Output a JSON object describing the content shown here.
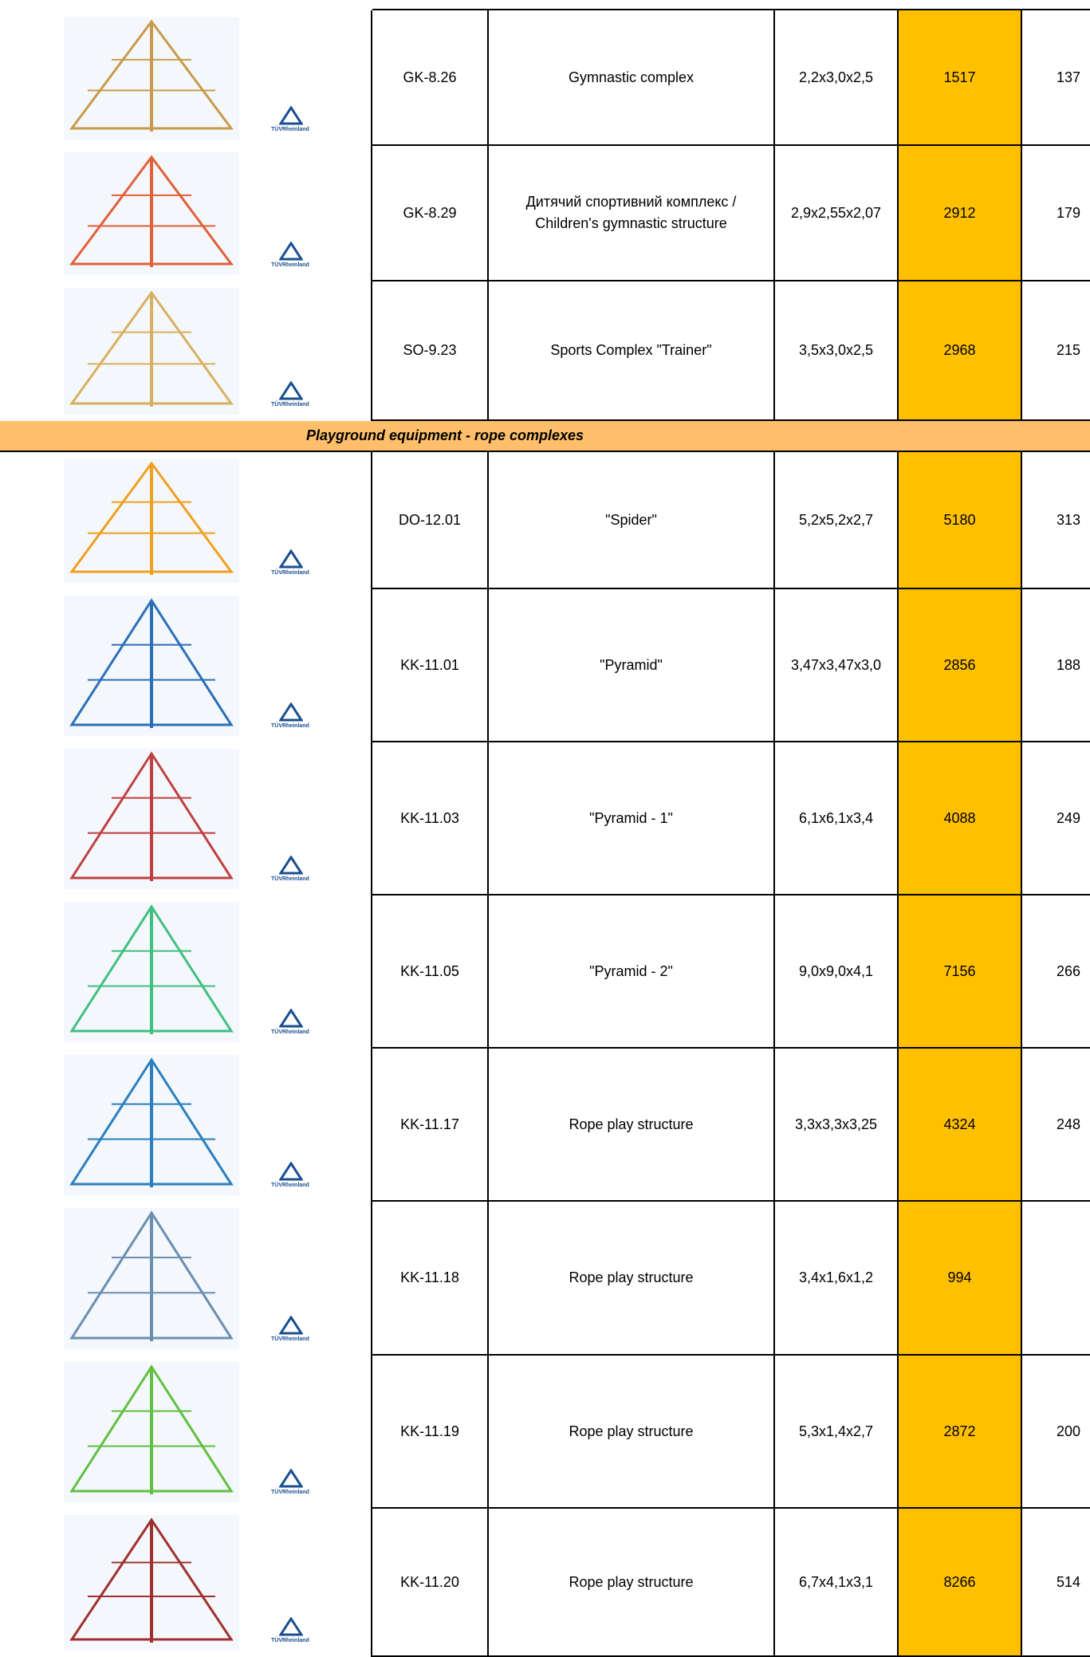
{
  "logo_text": "TÜVRheinland",
  "groups": [
    {
      "rows": [
        {
          "code": "GK-8.26",
          "name": "Gymnastic complex",
          "size": "2,2x3,0x2,5",
          "price": 1517,
          "qty": 137
        },
        {
          "code": "GK-8.29",
          "name": "Дитячий спортивний комплекс / Children's gymnastic structure",
          "size": "2,9x2,55x2,07",
          "price": 2912,
          "qty": 179
        },
        {
          "code": "SO-9.23",
          "name": "Sports Complex \"Trainer\"",
          "size": "3,5x3,0x2,5",
          "price": 2968,
          "qty": 215
        }
      ]
    },
    {
      "title": "Playground equipment  - rope complexes",
      "rows": [
        {
          "code": "DO-12.01",
          "name": "\"Spider\"",
          "size": "5,2x5,2x2,7",
          "price": 5180,
          "qty": 313
        },
        {
          "code": "KK-11.01",
          "name": "\"Pyramid\"",
          "size": "3,47x3,47x3,0",
          "price": 2856,
          "qty": 188
        },
        {
          "code": "KK-11.03",
          "name": "\"Pyramid - 1\"",
          "size": "6,1x6,1x3,4",
          "price": 4088,
          "qty": 249
        },
        {
          "code": "KK-11.05",
          "name": "\"Pyramid - 2\"",
          "size": "9,0x9,0x4,1",
          "price": 7156,
          "qty": 266
        },
        {
          "code": "KK-11.17",
          "name": "Rope play structure",
          "size": "3,3x3,3x3,25",
          "price": 4324,
          "qty": 248
        },
        {
          "code": "KK-11.18",
          "name": "Rope play structure",
          "size": "3,4x1,6x1,2",
          "price": 994
        },
        {
          "code": "KK-11.19",
          "name": "Rope play structure",
          "size": "5,3x1,4x2,7",
          "price": 2872,
          "qty": 200
        },
        {
          "code": "KK-11.20",
          "name": "Rope play structure",
          "size": "6,7x4,1x3,1",
          "price": 8266,
          "qty": 514
        }
      ]
    }
  ]
}
